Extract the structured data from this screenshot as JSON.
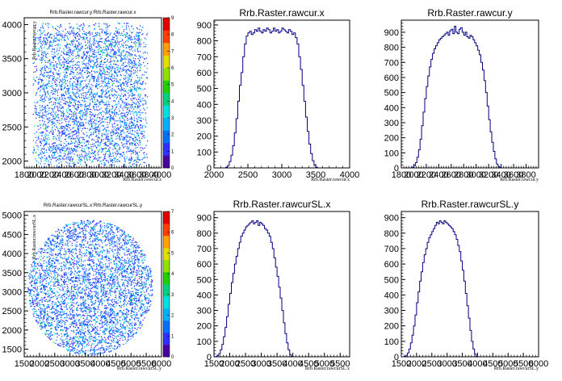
{
  "chart_data": [
    {
      "type": "heatmap",
      "title": "Rrb.Raster.rawcur.y:Rrb.Raster.rawcur.x",
      "xlabel": "Rrb.Raster.rawcur.x",
      "ylabel": "Rrb.Raster.rawcur.y",
      "xlim": [
        1800,
        4000
      ],
      "ylim": [
        1900,
        4100
      ],
      "x_ticks": [
        "1800",
        "2000",
        "2200",
        "2400",
        "2600",
        "2800",
        "3000",
        "3200",
        "3400",
        "3600",
        "3800",
        "4000"
      ],
      "y_ticks": [
        "2000",
        "2500",
        "3000",
        "3500",
        "4000"
      ],
      "z_max": 9,
      "z_ticks": [
        "0",
        "1",
        "2",
        "3",
        "4",
        "5",
        "6",
        "7",
        "8",
        "9"
      ],
      "shape": "square",
      "x_range": [
        2000,
        3700
      ],
      "y_range": [
        1950,
        3950
      ]
    },
    {
      "type": "bar",
      "title": "Rrb.Raster.rawcur.x",
      "xlabel": "Rrb.Raster.rawcur.x",
      "xlim": [
        2000,
        4000
      ],
      "ylim": [
        0,
        930
      ],
      "x_ticks": [
        "2000",
        "2500",
        "3000",
        "3500",
        "4000"
      ],
      "y_ticks": [
        "0",
        "100",
        "200",
        "300",
        "400",
        "500",
        "600",
        "700",
        "800",
        "900"
      ],
      "bin_edges_start": 2150,
      "bin_width": 25,
      "values": [
        0,
        5,
        15,
        40,
        80,
        140,
        220,
        310,
        420,
        520,
        600,
        700,
        780,
        830,
        850,
        860,
        840,
        850,
        870,
        860,
        880,
        860,
        850,
        870,
        860,
        880,
        870,
        850,
        860,
        880,
        860,
        870,
        850,
        860,
        880,
        870,
        860,
        850,
        870,
        860,
        840,
        850,
        820,
        780,
        700,
        620,
        520,
        420,
        320,
        230,
        150,
        90,
        45,
        15,
        5
      ]
    },
    {
      "type": "bar",
      "title": "Rrb.Raster.rawcur.y",
      "xlabel": "Rrb.Raster.rawcur.y",
      "xlim": [
        1800,
        4000
      ],
      "ylim": [
        0,
        980
      ],
      "x_ticks": [
        "1800",
        "2000",
        "2200",
        "2400",
        "2600",
        "2800",
        "3000",
        "3200",
        "3400",
        "3600",
        "3800"
      ],
      "y_ticks": [
        "0",
        "100",
        "200",
        "300",
        "400",
        "500",
        "600",
        "700",
        "800",
        "900"
      ],
      "bin_edges_start": 1950,
      "bin_width": 25,
      "values": [
        0,
        5,
        15,
        35,
        70,
        120,
        190,
        280,
        370,
        460,
        540,
        610,
        670,
        720,
        760,
        790,
        810,
        830,
        850,
        860,
        870,
        880,
        890,
        900,
        880,
        910,
        920,
        890,
        940,
        900,
        890,
        920,
        930,
        900,
        880,
        900,
        870,
        860,
        880,
        870,
        850,
        830,
        810,
        780,
        750,
        700,
        650,
        580,
        500,
        410,
        320,
        240,
        170,
        110,
        60,
        25,
        10,
        3
      ]
    },
    {
      "type": "heatmap",
      "title": "Rrb.Raster.rawcurSL.x:Rrb.Raster.rawcurSL.y",
      "xlabel": "Rrb.Raster.rawcurSL.y",
      "ylabel": "Rrb.Raster.rawcurSL.x",
      "xlim": [
        1500,
        6000
      ],
      "ylim": [
        1300,
        5100
      ],
      "x_ticks": [
        "1500",
        "2000",
        "2500",
        "3000",
        "3500",
        "4000",
        "4500",
        "5000",
        "5500",
        "6000"
      ],
      "y_ticks": [
        "1500",
        "2000",
        "2500",
        "3000",
        "3500",
        "4000",
        "4500",
        "5000"
      ],
      "z_max": 7,
      "z_ticks": [
        "0",
        "1",
        "2",
        "3",
        "4",
        "5",
        "6",
        "7"
      ],
      "shape": "circle",
      "x_range": [
        1600,
        5700
      ],
      "y_range": [
        1350,
        4900
      ]
    },
    {
      "type": "bar",
      "title": "Rrb.Raster.rawcurSL.x",
      "xlabel": "Rrb.Raster.rawcurSL.x",
      "xlim": [
        1500,
        5800
      ],
      "ylim": [
        0,
        940
      ],
      "x_ticks": [
        "1500",
        "2000",
        "2500",
        "3000",
        "3500",
        "4000",
        "4500",
        "5000",
        "5500"
      ],
      "y_ticks": [
        "0",
        "100",
        "200",
        "300",
        "400",
        "500",
        "600",
        "700",
        "800",
        "900"
      ],
      "bin_edges_start": 1500,
      "bin_width": 50,
      "values": [
        0,
        2,
        8,
        20,
        45,
        80,
        130,
        190,
        260,
        340,
        410,
        480,
        540,
        600,
        650,
        700,
        740,
        780,
        800,
        820,
        840,
        850,
        860,
        870,
        880,
        860,
        870,
        880,
        850,
        870,
        860,
        850,
        830,
        820,
        800,
        780,
        740,
        700,
        640,
        580,
        520,
        450,
        380,
        300,
        220,
        150,
        90,
        45,
        15,
        3
      ]
    },
    {
      "type": "bar",
      "title": "Rrb.Raster.rawcurSL.y",
      "xlabel": "Rrb.Raster.rawcurSL.y",
      "xlim": [
        1500,
        6000
      ],
      "ylim": [
        0,
        940
      ],
      "x_ticks": [
        "1500",
        "2000",
        "2500",
        "3000",
        "3500",
        "4000",
        "4500",
        "5000",
        "5500",
        "6000"
      ],
      "y_ticks": [
        "0",
        "100",
        "200",
        "300",
        "400",
        "500",
        "600",
        "700",
        "800",
        "900"
      ],
      "bin_edges_start": 1550,
      "bin_width": 50,
      "values": [
        0,
        3,
        10,
        25,
        50,
        90,
        140,
        200,
        270,
        350,
        420,
        490,
        550,
        610,
        660,
        700,
        740,
        770,
        790,
        810,
        830,
        850,
        870,
        860,
        880,
        870,
        860,
        880,
        870,
        860,
        850,
        840,
        830,
        810,
        790,
        760,
        720,
        680,
        620,
        560,
        490,
        410,
        330,
        250,
        170,
        100,
        50,
        18,
        4
      ]
    }
  ],
  "colors": {
    "hist_line": "#000080",
    "palette": [
      "#4b00a0",
      "#3030ff",
      "#0070ff",
      "#00b0ff",
      "#00e0e0",
      "#00d080",
      "#20d000",
      "#90e000",
      "#e0e000",
      "#ffa000",
      "#ff4000",
      "#e00000"
    ]
  }
}
